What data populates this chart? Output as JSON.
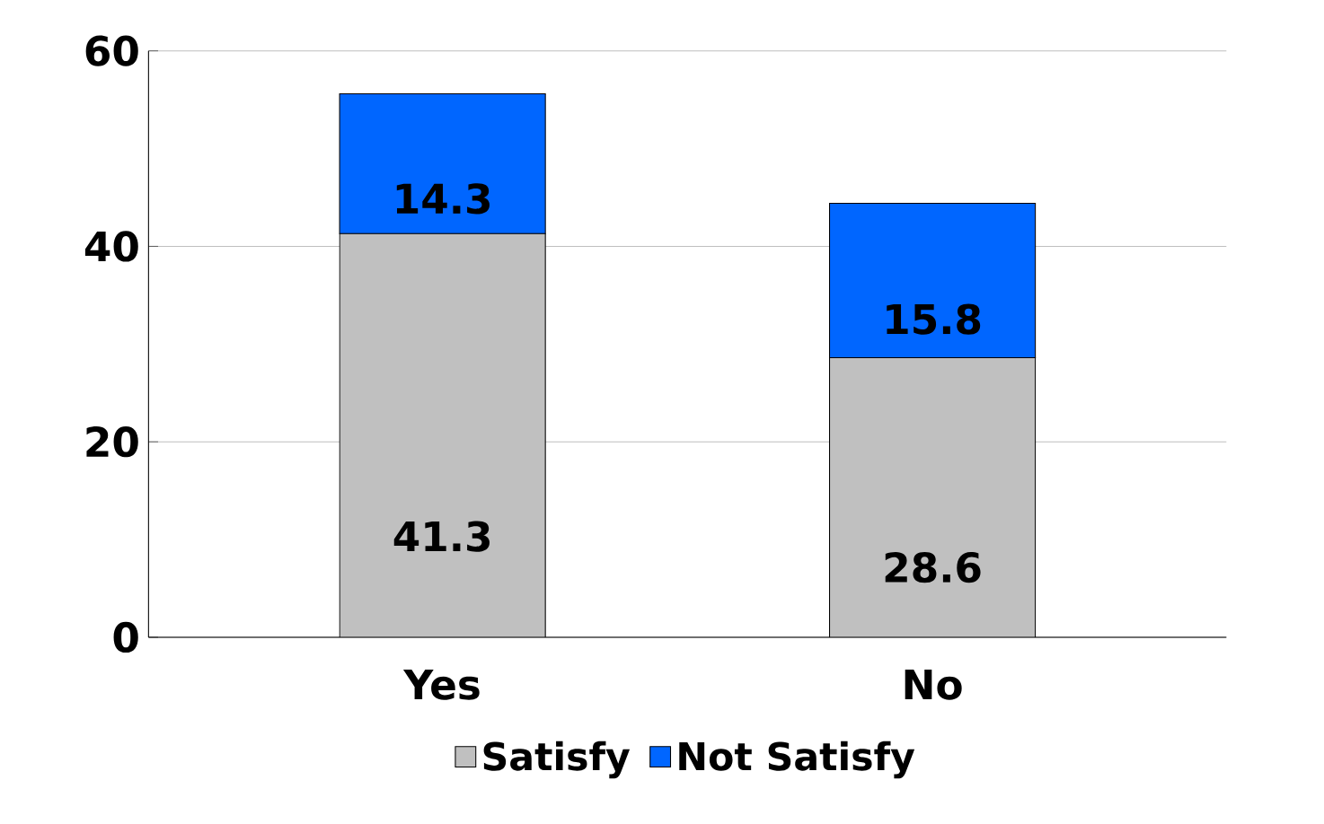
{
  "chart_data": {
    "type": "bar",
    "stacked": true,
    "categories": [
      "Yes",
      "No"
    ],
    "series": [
      {
        "name": "Satisfy",
        "color": "#c0c0c0",
        "values": [
          41.3,
          28.6
        ]
      },
      {
        "name": "Not Satisfy",
        "color": "#0066ff",
        "values": [
          14.3,
          15.8
        ]
      }
    ],
    "ylim": [
      0,
      60
    ],
    "yticks": [
      0,
      20,
      40,
      60
    ],
    "grid": "y",
    "legend": "bottom",
    "data_labels": true
  }
}
